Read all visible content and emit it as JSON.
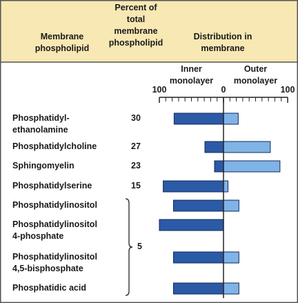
{
  "chart_data": {
    "type": "diverging-bar",
    "headers": [
      "Membrane\nphospholipid",
      "Percent of\ntotal\nmembrane\nphospholipid",
      "Distribution in\nmembrane"
    ],
    "categories": [
      "Phosphatidyl-\nethanolamine",
      "Phosphatidylcholine",
      "Sphingomyelin",
      "Phosphatidylserine",
      "Phosphatidylinositol",
      "Phosphatidylinositol\n4-phosphate",
      "Phosphatidylinositol\n4,5-bisphosphate",
      "Phosphatidic acid"
    ],
    "percent": [
      30,
      27,
      23,
      15,
      null,
      null,
      null,
      null
    ],
    "shared_percent": 5,
    "series": [
      {
        "name": "Inner\nmonolayer",
        "color": "#2b5aa6",
        "xlim": [
          100,
          0
        ],
        "xticks": [
          100
        ],
        "values": [
          77,
          29,
          14,
          94,
          78,
          100,
          78,
          78
        ]
      },
      {
        "name": "Outer\nmonolayer",
        "color": "#80b3e6",
        "xlim": [
          0,
          100
        ],
        "xticks": [
          0,
          100
        ],
        "values": [
          23,
          73,
          88,
          7,
          24,
          0,
          24,
          24
        ]
      }
    ]
  }
}
